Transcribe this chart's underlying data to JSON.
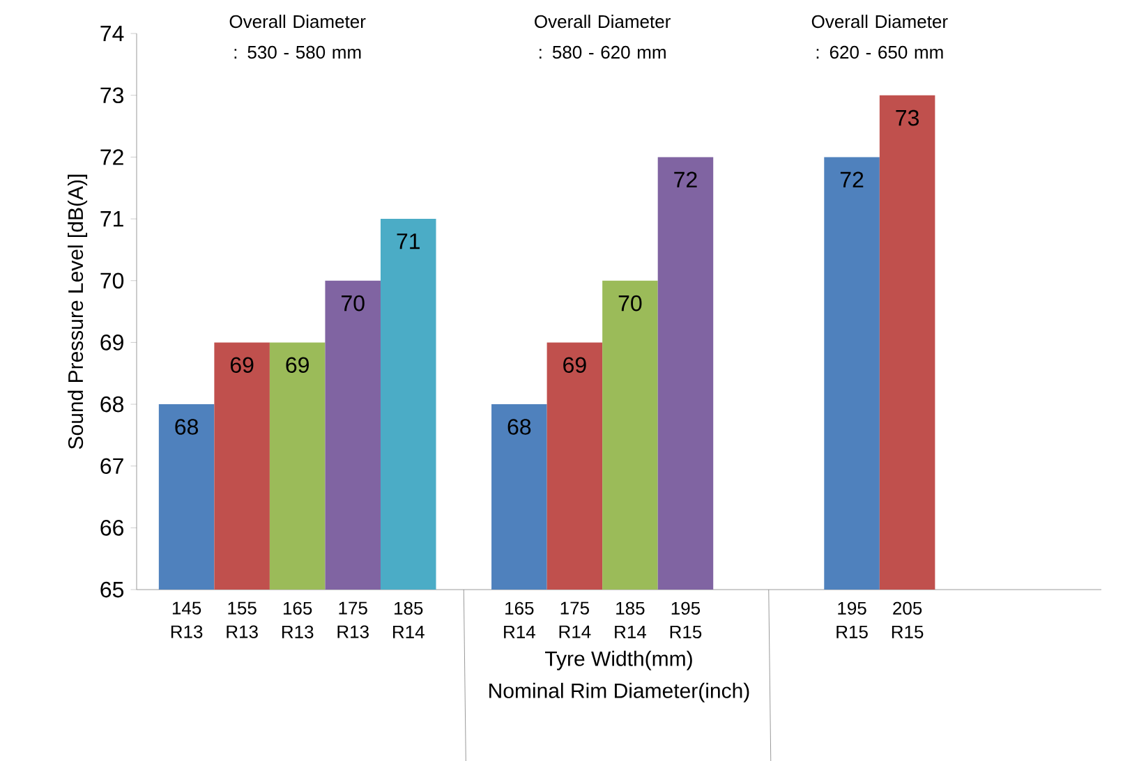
{
  "chart_data": {
    "type": "bar",
    "categories": [
      "145 R13",
      "155 R13",
      "165 R13",
      "175 R13",
      "185 R14",
      null,
      "165 R14",
      "175 R14",
      "185 R14",
      "195 R15",
      null,
      null,
      "195 R15",
      "205 R15",
      null,
      null,
      null
    ],
    "values": [
      68,
      69,
      69,
      70,
      71,
      null,
      68,
      69,
      70,
      72,
      null,
      null,
      72,
      73,
      null,
      null,
      null
    ],
    "colors": [
      "#4f81bd",
      "#c0504d",
      "#9bbb59",
      "#8064a2",
      "#4bacc6",
      null,
      "#4f81bd",
      "#c0504d",
      "#9bbb59",
      "#8064a2",
      null,
      null,
      "#4f81bd",
      "#c0504d",
      null,
      null,
      null
    ],
    "xlabel": "Tyre Width(mm)",
    "ylabel": "Sound Pressure Level [dB(A)]",
    "annotations": [
      "Overall Diameter : 530 - 580 mm",
      "Overall Diameter : 580 - 620 mm",
      "Overall Diameter : 620 - 650 mm",
      "Nominal Rim Diameter(inch)"
    ],
    "ylim": [
      65,
      74
    ],
    "yticks": [
      65,
      66,
      67,
      68,
      69,
      70,
      71,
      72,
      73,
      74
    ],
    "data_labels": true
  }
}
